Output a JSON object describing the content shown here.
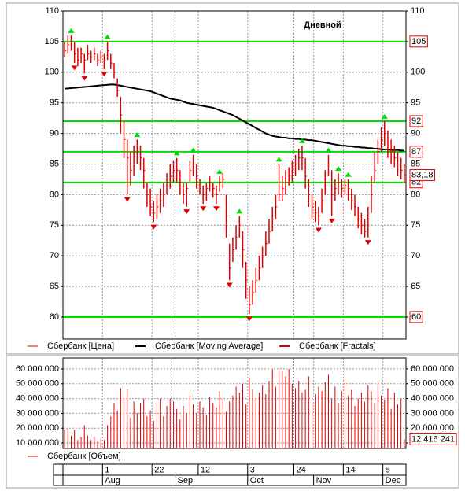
{
  "chart_data": [
    {
      "type": "ohlc",
      "title": "Дневной",
      "ylim": [
        56.4,
        110
      ],
      "yticks": [
        60,
        65,
        70,
        75,
        80,
        85,
        90,
        95,
        100,
        105,
        110
      ],
      "grid": true,
      "levels": [
        105,
        92,
        87,
        82,
        60
      ],
      "level_color": "#00e000",
      "last_price": {
        "value": 83.18,
        "label": "83,18"
      },
      "series": [
        {
          "name": "Сбербанк [Цена]",
          "color": "#e00000",
          "values": [
            103.5,
            104.5,
            105,
            103,
            102,
            103,
            102,
            103,
            102.5,
            103,
            102,
            102.5,
            102,
            103.5,
            101.5,
            100,
            97,
            93,
            89,
            86,
            84,
            87,
            87.5,
            86,
            84,
            80,
            78,
            77,
            78,
            79,
            80,
            82,
            83,
            84,
            84,
            82,
            80,
            81,
            84,
            85,
            83,
            81,
            80,
            81,
            82,
            81,
            80,
            82,
            82.5,
            76,
            68,
            71,
            73,
            75,
            71,
            66,
            62,
            64,
            66,
            68,
            70,
            72,
            74,
            76,
            78,
            80,
            81,
            82,
            83,
            84,
            85,
            86,
            86,
            83,
            80,
            78,
            77,
            76,
            79,
            82,
            85,
            80,
            81,
            82,
            81,
            81.5,
            81,
            79,
            78,
            76,
            75,
            74,
            76,
            80,
            84,
            87,
            89,
            90,
            88,
            87,
            86,
            85,
            84,
            83.18
          ],
          "high": [
            105,
            106,
            106,
            105,
            104,
            104,
            103,
            104.5,
            103.5,
            104,
            103,
            103.5,
            103,
            105,
            103,
            101.5,
            99,
            96,
            92,
            89,
            87,
            88,
            89,
            88,
            86,
            82,
            81,
            79,
            80,
            81,
            82,
            83.5,
            85,
            85.5,
            86,
            84,
            82,
            82,
            85.5,
            86.5,
            85,
            82.5,
            81.5,
            82,
            83,
            82,
            81.5,
            83,
            83.5,
            80,
            72,
            73,
            75,
            76.5,
            74,
            69,
            65,
            66,
            68,
            70,
            71.5,
            74,
            76,
            78,
            80,
            85,
            83,
            84,
            84.5,
            85.5,
            86.5,
            87.5,
            88,
            86,
            82.5,
            80,
            79,
            78,
            81,
            84,
            86.5,
            84,
            82.5,
            83.5,
            82.5,
            82.5,
            82.5,
            81,
            80,
            78,
            77,
            76,
            78,
            83,
            87,
            89,
            91,
            92,
            90.5,
            89,
            88,
            87,
            86,
            85
          ],
          "low": [
            102.5,
            103,
            103.5,
            101.5,
            101,
            101.5,
            99.8,
            102,
            101.5,
            102,
            101,
            101.5,
            100.5,
            102,
            100.5,
            99,
            96,
            90,
            86,
            80,
            81.5,
            83,
            85,
            84,
            81,
            78,
            76.5,
            75.5,
            76,
            77,
            78,
            80,
            81,
            82,
            82,
            80,
            78.5,
            78,
            82,
            83,
            81,
            80,
            78.5,
            79,
            80.5,
            79.5,
            78.5,
            80.5,
            81,
            73,
            66,
            69,
            71,
            73,
            68,
            63,
            60.5,
            62,
            64,
            66,
            68,
            70,
            72,
            74,
            76,
            79,
            79,
            80,
            81.5,
            82,
            83,
            84,
            84,
            81,
            78,
            76,
            75.5,
            75,
            77,
            80,
            83,
            76.5,
            79,
            80,
            79.5,
            80,
            79,
            77.5,
            76.5,
            74.5,
            73.5,
            73,
            73,
            77,
            82,
            85,
            87,
            88,
            86,
            85,
            84.5,
            83,
            82.5,
            82
          ]
        },
        {
          "name": "Сбербанк [Moving Average]",
          "color": "#000000",
          "values": [
            97.3,
            97.35,
            97.4,
            97.45,
            97.5,
            97.55,
            97.6,
            97.65,
            97.7,
            97.75,
            97.8,
            97.85,
            97.9,
            97.95,
            98,
            98,
            97.9,
            97.8,
            97.7,
            97.6,
            97.5,
            97.4,
            97.3,
            97.2,
            97.1,
            97,
            96.9,
            96.7,
            96.5,
            96.3,
            96.1,
            95.9,
            95.7,
            95.6,
            95.5,
            95.4,
            95.2,
            95,
            94.9,
            94.8,
            94.7,
            94.6,
            94.5,
            94.4,
            94.3,
            94.2,
            94,
            93.8,
            93.6,
            93.4,
            93.2,
            93,
            92.7,
            92.4,
            92.1,
            91.8,
            91.5,
            91.2,
            90.9,
            90.6,
            90.3,
            90,
            89.8,
            89.6,
            89.5,
            89.4,
            89.3,
            89.3,
            89.2,
            89.2,
            89.1,
            89.1,
            89,
            89,
            88.9,
            88.9,
            88.8,
            88.7,
            88.6,
            88.5,
            88.4,
            88.3,
            88.2,
            88.1,
            88,
            88,
            87.9,
            87.9,
            87.8,
            87.8,
            87.7,
            87.7,
            87.6,
            87.6,
            87.5,
            87.5,
            87.4,
            87.4,
            87.4,
            87.3,
            87.3,
            87.3,
            87.2,
            87.2
          ]
        },
        {
          "name": "Сбербанк [Fractals]",
          "color": "#e00000",
          "up_color": "#00dd00",
          "up": [
            null,
            null,
            106.8,
            null,
            null,
            null,
            null,
            null,
            null,
            null,
            null,
            null,
            null,
            105.8,
            null,
            null,
            null,
            null,
            null,
            null,
            null,
            null,
            89.8,
            null,
            null,
            null,
            null,
            null,
            null,
            null,
            null,
            null,
            null,
            null,
            86.8,
            null,
            null,
            null,
            null,
            87.3,
            null,
            null,
            null,
            null,
            null,
            null,
            null,
            83.8,
            null,
            null,
            null,
            null,
            null,
            77.3,
            null,
            null,
            null,
            null,
            null,
            null,
            null,
            null,
            null,
            null,
            null,
            85.8,
            null,
            null,
            null,
            null,
            null,
            null,
            88.8,
            null,
            null,
            null,
            null,
            null,
            null,
            null,
            87.3,
            null,
            null,
            84.3,
            null,
            null,
            83.3,
            null,
            null,
            null,
            null,
            null,
            null,
            null,
            null,
            null,
            null,
            92.8,
            null,
            null,
            null,
            null,
            null,
            null
          ],
          "down": [
            null,
            null,
            null,
            100.7,
            null,
            null,
            99,
            null,
            null,
            null,
            null,
            null,
            99.7,
            null,
            null,
            null,
            null,
            null,
            null,
            79.2,
            null,
            null,
            null,
            null,
            null,
            null,
            null,
            74.7,
            null,
            null,
            null,
            null,
            null,
            null,
            null,
            null,
            null,
            77.2,
            null,
            null,
            null,
            null,
            77.7,
            null,
            null,
            null,
            77.7,
            null,
            null,
            null,
            65.2,
            null,
            null,
            null,
            null,
            null,
            59.7,
            null,
            null,
            null,
            null,
            null,
            null,
            null,
            null,
            null,
            null,
            null,
            null,
            null,
            null,
            null,
            null,
            null,
            null,
            null,
            null,
            74.2,
            null,
            null,
            null,
            75.7,
            null,
            null,
            null,
            null,
            null,
            null,
            null,
            null,
            null,
            null,
            72.2,
            null,
            null,
            null,
            null,
            null,
            null,
            null,
            null,
            null,
            null,
            null
          ]
        }
      ]
    },
    {
      "type": "bar",
      "ylim": [
        6300000,
        67400000
      ],
      "grid": true,
      "yticks": [
        {
          "value": 10000000,
          "label": "10 000 000"
        },
        {
          "value": 20000000,
          "label": "20 000 000"
        },
        {
          "value": 30000000,
          "label": "30 000 000"
        },
        {
          "value": 40000000,
          "label": "40 000 000"
        },
        {
          "value": 50000000,
          "label": "50 000 000"
        },
        {
          "value": 60000000,
          "label": "60 000 000"
        }
      ],
      "categories": [
        null,
        null,
        null,
        null,
        null,
        null,
        null,
        null,
        null,
        null,
        null,
        null,
        "1",
        null,
        null,
        null,
        null,
        null,
        null,
        null,
        null,
        null,
        null,
        null,
        null,
        null,
        null,
        "22",
        null,
        null,
        null,
        null,
        null,
        null,
        null,
        null,
        null,
        null,
        null,
        null,
        null,
        "12",
        null,
        null,
        null,
        null,
        null,
        null,
        null,
        null,
        null,
        null,
        null,
        null,
        null,
        null,
        "3",
        null,
        null,
        null,
        null,
        null,
        null,
        null,
        null,
        null,
        null,
        null,
        null,
        null,
        "24",
        null,
        null,
        null,
        null,
        null,
        null,
        null,
        null,
        null,
        null,
        null,
        null,
        null,
        null,
        "14",
        null,
        null,
        null,
        null,
        null,
        null,
        null,
        null,
        null,
        null,
        null,
        "5",
        null,
        null,
        null,
        null,
        null,
        null
      ],
      "months": [
        null,
        null,
        null,
        null,
        null,
        null,
        null,
        null,
        null,
        null,
        null,
        null,
        "Aug",
        null,
        null,
        null,
        null,
        null,
        null,
        null,
        null,
        null,
        null,
        null,
        null,
        null,
        null,
        null,
        null,
        null,
        null,
        null,
        null,
        null,
        "Sep",
        null,
        null,
        null,
        null,
        null,
        null,
        null,
        null,
        null,
        null,
        null,
        null,
        null,
        null,
        null,
        null,
        null,
        null,
        null,
        null,
        null,
        "Oct",
        null,
        null,
        null,
        null,
        null,
        null,
        null,
        null,
        null,
        null,
        null,
        null,
        null,
        null,
        null,
        null,
        null,
        null,
        null,
        "Nov",
        null,
        null,
        null,
        null,
        null,
        null,
        null,
        null,
        null,
        null,
        null,
        null,
        null,
        null,
        null,
        null,
        null,
        null,
        null,
        null,
        "Dec",
        null,
        null,
        null,
        null,
        null,
        null
      ],
      "last_value": {
        "value": 12416241,
        "label": "12 416 241"
      },
      "series": [
        {
          "name": "Сбербанк [Объем]",
          "color": "#e00000",
          "values": [
            19000000,
            20000000,
            15000000,
            19000000,
            12000000,
            14000000,
            22000000,
            15000000,
            12000000,
            14000000,
            11000000,
            13000000,
            12000000,
            22000000,
            28000000,
            37000000,
            32000000,
            47000000,
            40000000,
            46000000,
            27000000,
            38000000,
            30000000,
            37000000,
            40000000,
            28000000,
            32000000,
            25000000,
            36000000,
            40000000,
            28000000,
            35000000,
            40000000,
            38000000,
            33000000,
            26000000,
            35000000,
            30000000,
            42000000,
            36000000,
            30000000,
            38000000,
            34000000,
            29000000,
            41000000,
            37000000,
            34000000,
            45000000,
            40000000,
            31000000,
            38000000,
            42000000,
            48000000,
            44000000,
            50000000,
            36000000,
            54000000,
            46000000,
            40000000,
            44000000,
            49000000,
            43000000,
            52000000,
            60000000,
            48000000,
            61000000,
            59000000,
            55000000,
            60000000,
            50000000,
            47000000,
            52000000,
            44000000,
            46000000,
            55000000,
            38000000,
            43000000,
            48000000,
            45000000,
            51000000,
            56000000,
            40000000,
            48000000,
            37000000,
            45000000,
            53000000,
            42000000,
            46000000,
            35000000,
            40000000,
            44000000,
            38000000,
            49000000,
            45000000,
            37000000,
            51000000,
            42000000,
            39000000,
            47000000,
            33000000,
            44000000,
            36000000,
            40000000,
            12416241
          ]
        }
      ]
    }
  ]
}
